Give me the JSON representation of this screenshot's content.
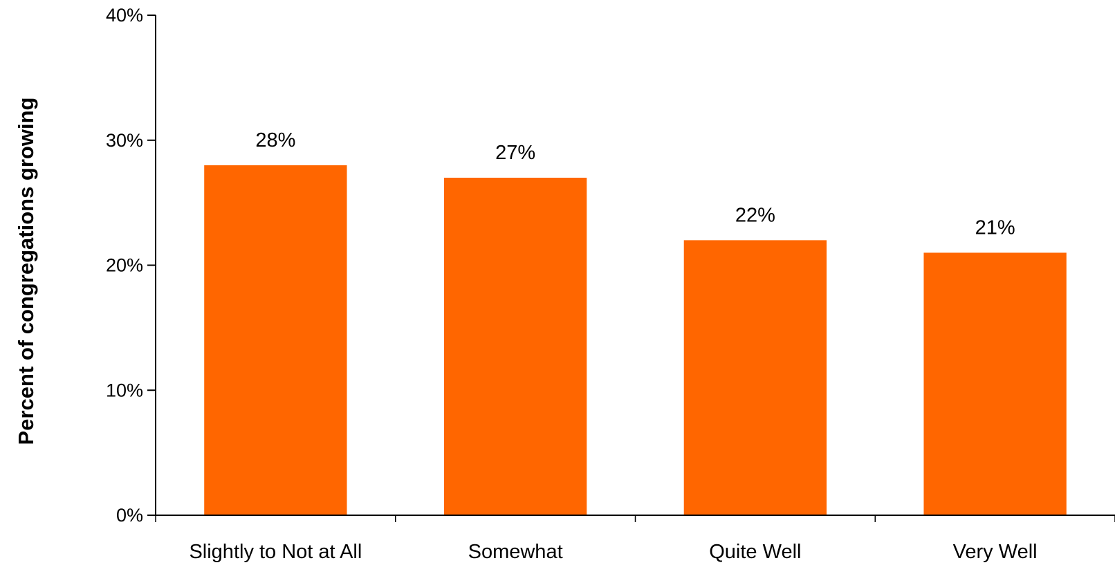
{
  "chart_data": {
    "type": "bar",
    "categories": [
      "Slightly to Not at All",
      "Somewhat",
      "Quite Well",
      "Very Well"
    ],
    "values": [
      28,
      27,
      22,
      21
    ],
    "data_labels": [
      "28%",
      "27%",
      "22%",
      "21%"
    ],
    "title": "",
    "xlabel": "",
    "ylabel": "Percent of congregations growing",
    "ylim": [
      0,
      40
    ],
    "yticks": [
      0,
      10,
      20,
      30,
      40
    ],
    "ytick_labels": [
      "0%",
      "10%",
      "20%",
      "30%",
      "40%"
    ],
    "grid": false,
    "legend": "none",
    "bar_color": "#ff6600",
    "axis_color": "#000000"
  }
}
